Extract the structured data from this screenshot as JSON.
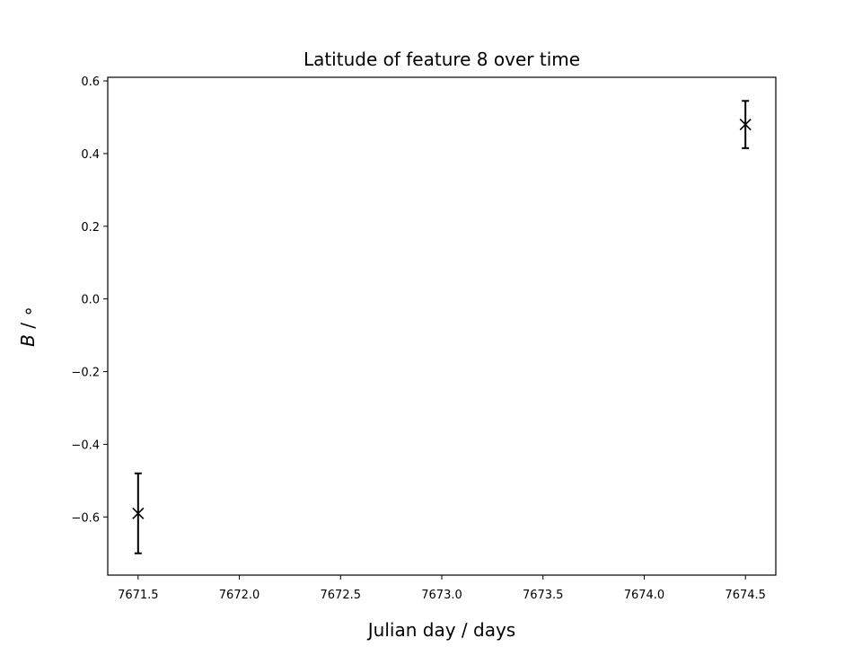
{
  "chart_data": {
    "type": "scatter",
    "title": "Latitude of feature 8 over time",
    "xlabel": "Julian day / days",
    "ylabel_var": "B",
    "ylabel_unit": " / ∘",
    "xlim": [
      7671.35,
      7674.65
    ],
    "ylim": [
      -0.76,
      0.61
    ],
    "xticks": [
      7671.5,
      7672.0,
      7672.5,
      7673.0,
      7673.5,
      7674.0,
      7674.5
    ],
    "xtick_labels": [
      "7671.5",
      "7672.0",
      "7672.5",
      "7673.0",
      "7673.5",
      "7674.0",
      "7674.5"
    ],
    "yticks": [
      -0.6,
      -0.4,
      -0.2,
      0.0,
      0.2,
      0.4,
      0.6
    ],
    "ytick_labels": [
      "−0.6",
      "−0.4",
      "−0.2",
      "0.0",
      "0.2",
      "0.4",
      "0.6"
    ],
    "grid": false,
    "marker": "x",
    "color": "#000000",
    "points": [
      {
        "x": 7671.5,
        "y": -0.59,
        "yerr": 0.11
      },
      {
        "x": 7674.5,
        "y": 0.48,
        "yerr": 0.065
      }
    ]
  }
}
